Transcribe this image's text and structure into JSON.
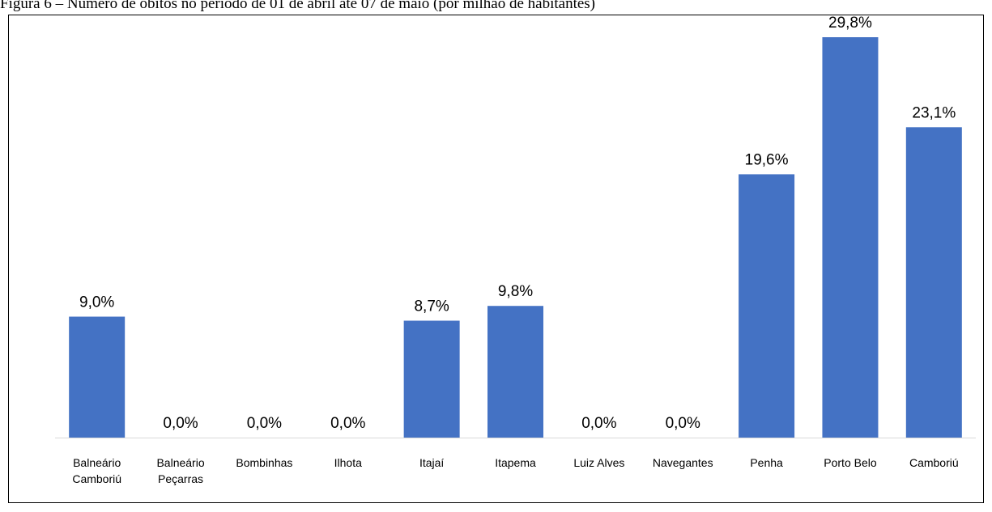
{
  "chart_data": {
    "type": "bar",
    "title": "Figura 6 – Número de óbitos no período de 01 de abril até 07 de maio (por milhão de habitantes)",
    "categories": [
      "Balneário Camboriú",
      "Balneário Peçarras",
      "Bombinhas",
      "Ilhota",
      "Itajaí",
      "Itapema",
      "Luiz Alves",
      "Navegantes",
      "Penha",
      "Porto Belo",
      "Camboriú"
    ],
    "values": [
      9.0,
      0.0,
      0.0,
      0.0,
      8.7,
      9.8,
      0.0,
      0.0,
      19.6,
      29.8,
      23.1
    ],
    "value_labels": [
      "9,0%",
      "0,0%",
      "0,0%",
      "0,0%",
      "8,7%",
      "9,8%",
      "0,0%",
      "0,0%",
      "19,6%",
      "29,8%",
      "23,1%"
    ],
    "color": "#4472c4"
  }
}
